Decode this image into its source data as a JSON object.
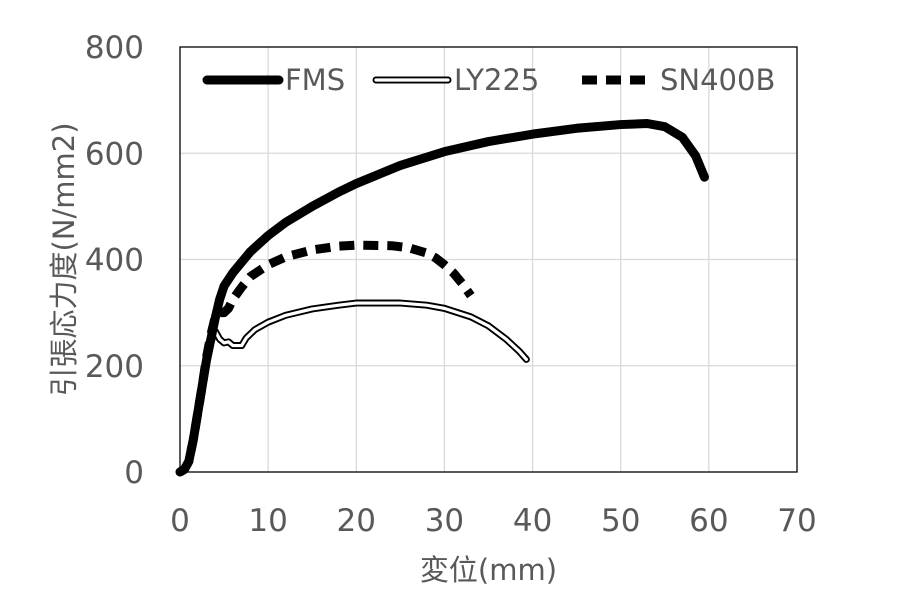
{
  "chart_data": {
    "type": "line",
    "xlabel": "変位(mm)",
    "ylabel": "引張応力度(N/mm2)",
    "xlim": [
      0,
      70
    ],
    "ylim": [
      0,
      800
    ],
    "x_ticks": [
      "0",
      "10",
      "20",
      "30",
      "40",
      "50",
      "60",
      "70"
    ],
    "y_ticks": [
      "0",
      "200",
      "400",
      "600",
      "800"
    ],
    "grid": "vertical and horizontal",
    "legend_position": "top, inside plot",
    "series": [
      {
        "name": "FMS",
        "style": "solid-thick",
        "color": "#000000",
        "points": [
          [
            0,
            0
          ],
          [
            0.5,
            5
          ],
          [
            1,
            20
          ],
          [
            1.5,
            60
          ],
          [
            2,
            110
          ],
          [
            2.5,
            160
          ],
          [
            3,
            210
          ],
          [
            3.5,
            250
          ],
          [
            4,
            290
          ],
          [
            4.5,
            325
          ],
          [
            5,
            350
          ],
          [
            6,
            375
          ],
          [
            7,
            395
          ],
          [
            8,
            415
          ],
          [
            10,
            445
          ],
          [
            12,
            470
          ],
          [
            15,
            500
          ],
          [
            18,
            527
          ],
          [
            20,
            543
          ],
          [
            25,
            577
          ],
          [
            30,
            603
          ],
          [
            35,
            622
          ],
          [
            40,
            636
          ],
          [
            45,
            647
          ],
          [
            50,
            654
          ],
          [
            53,
            656
          ],
          [
            55,
            650
          ],
          [
            57,
            630
          ],
          [
            58.5,
            595
          ],
          [
            59.5,
            555
          ]
        ]
      },
      {
        "name": "LY225",
        "style": "double-outline",
        "color": "#000000",
        "points": [
          [
            0,
            0
          ],
          [
            0.5,
            5
          ],
          [
            1,
            20
          ],
          [
            1.5,
            60
          ],
          [
            2,
            110
          ],
          [
            2.5,
            160
          ],
          [
            3,
            205
          ],
          [
            3.5,
            245
          ],
          [
            4,
            265
          ],
          [
            4.5,
            250
          ],
          [
            5,
            243
          ],
          [
            5.5,
            245
          ],
          [
            6,
            238
          ],
          [
            7,
            238
          ],
          [
            7.5,
            252
          ],
          [
            8.5,
            268
          ],
          [
            10,
            282
          ],
          [
            12,
            295
          ],
          [
            15,
            307
          ],
          [
            18,
            314
          ],
          [
            20,
            318
          ],
          [
            25,
            318
          ],
          [
            28,
            314
          ],
          [
            30,
            308
          ],
          [
            33,
            292
          ],
          [
            35,
            275
          ],
          [
            37,
            250
          ],
          [
            38.5,
            227
          ],
          [
            39.3,
            212
          ]
        ]
      },
      {
        "name": "SN400B",
        "style": "dashed-thick",
        "color": "#000000",
        "points": [
          [
            0,
            0
          ],
          [
            0.5,
            5
          ],
          [
            1,
            20
          ],
          [
            1.5,
            60
          ],
          [
            2,
            110
          ],
          [
            2.5,
            160
          ],
          [
            3,
            215
          ],
          [
            3.5,
            258
          ],
          [
            4,
            292
          ],
          [
            4.5,
            300
          ],
          [
            5,
            300
          ],
          [
            5.5,
            308
          ],
          [
            6,
            325
          ],
          [
            7,
            348
          ],
          [
            8,
            368
          ],
          [
            10,
            390
          ],
          [
            12,
            405
          ],
          [
            15,
            418
          ],
          [
            18,
            425
          ],
          [
            20,
            427
          ],
          [
            24,
            426
          ],
          [
            26,
            422
          ],
          [
            28,
            412
          ],
          [
            29,
            403
          ],
          [
            30,
            390
          ],
          [
            31,
            375
          ],
          [
            32,
            355
          ],
          [
            33,
            332
          ]
        ]
      }
    ]
  }
}
